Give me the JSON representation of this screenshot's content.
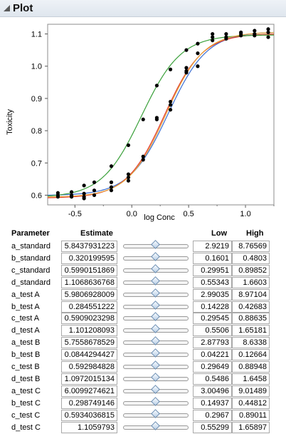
{
  "header": {
    "title": "Plot"
  },
  "plot": {
    "ylabel": "Toxicity",
    "xlabel": "log Conc",
    "xticks": [
      "-0.5",
      "0.0",
      "0.5",
      "1.0"
    ],
    "yticks": [
      "0.6",
      "0.7",
      "0.8",
      "0.9",
      "1.0",
      "1.1"
    ]
  },
  "chart_data": {
    "type": "scatter",
    "xlabel": "log Conc",
    "ylabel": "Toxicity",
    "xlim": [
      -0.74,
      1.25
    ],
    "ylim": [
      0.57,
      1.13
    ],
    "grid": false,
    "series": [
      {
        "color": "#3b6fd4",
        "curve": {
          "a": 0.5990151869,
          "b": 0.320199595,
          "c": 5.843793122,
          "d": 1.1068636768
        }
      },
      {
        "color": "#e03a2e",
        "curve": {
          "a": 0.5909023298,
          "b": 0.284551222,
          "c": 5.9806928009,
          "d": 1.101208093
        }
      },
      {
        "color": "#3aa03a",
        "curve": {
          "a": 0.592984828,
          "b": 0.0844294427,
          "c": 5.7558678529,
          "d": 1.0972015134
        }
      },
      {
        "color": "#e8a33a",
        "curve": {
          "a": 0.5934036815,
          "b": 0.298749146,
          "c": 6.0099274621,
          "d": 1.1059793
        }
      }
    ],
    "points": [
      {
        "x": -0.65,
        "y": 0.607
      },
      {
        "x": -0.65,
        "y": 0.6
      },
      {
        "x": -0.65,
        "y": 0.595
      },
      {
        "x": -0.53,
        "y": 0.61
      },
      {
        "x": -0.53,
        "y": 0.6
      },
      {
        "x": -0.53,
        "y": 0.595
      },
      {
        "x": -0.42,
        "y": 0.63
      },
      {
        "x": -0.42,
        "y": 0.605
      },
      {
        "x": -0.42,
        "y": 0.595
      },
      {
        "x": -0.42,
        "y": 0.59
      },
      {
        "x": -0.33,
        "y": 0.64
      },
      {
        "x": -0.33,
        "y": 0.615
      },
      {
        "x": -0.33,
        "y": 0.6
      },
      {
        "x": -0.18,
        "y": 0.69
      },
      {
        "x": -0.18,
        "y": 0.64
      },
      {
        "x": -0.18,
        "y": 0.625
      },
      {
        "x": -0.18,
        "y": 0.615
      },
      {
        "x": -0.03,
        "y": 0.755
      },
      {
        "x": -0.03,
        "y": 0.665
      },
      {
        "x": -0.03,
        "y": 0.655
      },
      {
        "x": -0.03,
        "y": 0.645
      },
      {
        "x": 0.1,
        "y": 0.835
      },
      {
        "x": 0.1,
        "y": 0.72
      },
      {
        "x": 0.1,
        "y": 0.71
      },
      {
        "x": 0.22,
        "y": 0.94
      },
      {
        "x": 0.22,
        "y": 0.84
      },
      {
        "x": 0.22,
        "y": 0.835
      },
      {
        "x": 0.34,
        "y": 0.99
      },
      {
        "x": 0.34,
        "y": 0.89
      },
      {
        "x": 0.34,
        "y": 0.88
      },
      {
        "x": 0.34,
        "y": 0.865
      },
      {
        "x": 0.48,
        "y": 1.05
      },
      {
        "x": 0.48,
        "y": 0.995
      },
      {
        "x": 0.48,
        "y": 0.985
      },
      {
        "x": 0.48,
        "y": 0.98
      },
      {
        "x": 0.58,
        "y": 1.07
      },
      {
        "x": 0.58,
        "y": 1.04
      },
      {
        "x": 0.58,
        "y": 1.0
      },
      {
        "x": 0.71,
        "y": 1.09
      },
      {
        "x": 0.71,
        "y": 1.1
      },
      {
        "x": 0.71,
        "y": 1.08
      },
      {
        "x": 0.83,
        "y": 1.1
      },
      {
        "x": 0.83,
        "y": 1.085
      },
      {
        "x": 0.83,
        "y": 1.09
      },
      {
        "x": 0.96,
        "y": 1.105
      },
      {
        "x": 0.96,
        "y": 1.095
      },
      {
        "x": 0.96,
        "y": 1.1
      },
      {
        "x": 1.08,
        "y": 1.11
      },
      {
        "x": 1.08,
        "y": 1.1
      },
      {
        "x": 1.08,
        "y": 1.095
      },
      {
        "x": 1.2,
        "y": 1.115
      },
      {
        "x": 1.2,
        "y": 1.105
      },
      {
        "x": 1.2,
        "y": 1.09
      }
    ]
  },
  "table": {
    "headers": {
      "parameter": "Parameter",
      "estimate": "Estimate",
      "low": "Low",
      "high": "High"
    },
    "rows": [
      {
        "name": "a_standard",
        "estimate": "5.8437931223",
        "low": "2.9219",
        "high": "8.76569"
      },
      {
        "name": "b_standard",
        "estimate": "0.320199595",
        "low": "0.1601",
        "high": "0.4803"
      },
      {
        "name": "c_standard",
        "estimate": "0.5990151869",
        "low": "0.29951",
        "high": "0.89852"
      },
      {
        "name": "d_standard",
        "estimate": "1.1068636768",
        "low": "0.55343",
        "high": "1.6603"
      },
      {
        "name": "a_test A",
        "estimate": "5.9806928009",
        "low": "2.99035",
        "high": "8.97104"
      },
      {
        "name": "b_test A",
        "estimate": "0.284551222",
        "low": "0.14228",
        "high": "0.42683"
      },
      {
        "name": "c_test A",
        "estimate": "0.5909023298",
        "low": "0.29545",
        "high": "0.88635"
      },
      {
        "name": "d_test A",
        "estimate": "1.101208093",
        "low": "0.5506",
        "high": "1.65181"
      },
      {
        "name": "a_test B",
        "estimate": "5.7558678529",
        "low": "2.87793",
        "high": "8.6338"
      },
      {
        "name": "b_test B",
        "estimate": "0.0844294427",
        "low": "0.04221",
        "high": "0.12664"
      },
      {
        "name": "c_test B",
        "estimate": "0.592984828",
        "low": "0.29649",
        "high": "0.88948"
      },
      {
        "name": "d_test B",
        "estimate": "1.0972015134",
        "low": "0.5486",
        "high": "1.6458"
      },
      {
        "name": "a_test C",
        "estimate": "6.0099274621",
        "low": "3.00496",
        "high": "9.01489"
      },
      {
        "name": "b_test C",
        "estimate": "0.298749146",
        "low": "0.14937",
        "high": "0.44812"
      },
      {
        "name": "c_test C",
        "estimate": "0.5934036815",
        "low": "0.2967",
        "high": "0.89011"
      },
      {
        "name": "d_test C",
        "estimate": "1.1059793",
        "low": "0.55299",
        "high": "1.65897"
      }
    ]
  }
}
